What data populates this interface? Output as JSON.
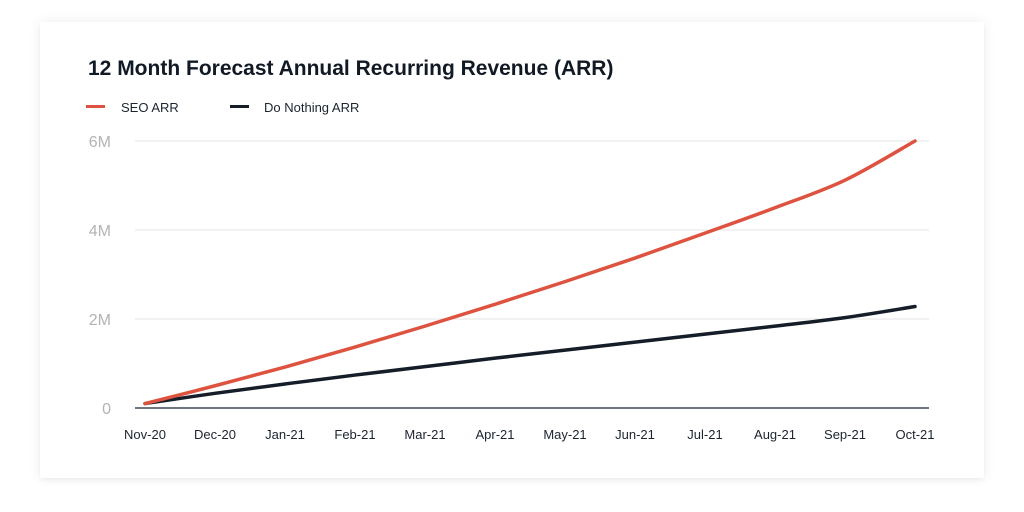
{
  "chart_data": {
    "type": "line",
    "title": "12 Month Forecast Annual Recurring Revenue (ARR)",
    "xlabel": "",
    "ylabel": "",
    "categories": [
      "Nov-20",
      "Dec-20",
      "Jan-21",
      "Feb-21",
      "Mar-21",
      "Apr-21",
      "May-21",
      "Jun-21",
      "Jul-21",
      "Aug-21",
      "Sep-21",
      "Oct-21"
    ],
    "yticks": [
      0,
      2000000,
      4000000,
      6000000
    ],
    "ytick_labels": [
      "0",
      "2M",
      "4M",
      "6M"
    ],
    "ylim": [
      0,
      6000000
    ],
    "grid": "horizontal",
    "legend_position": "top-left",
    "series": [
      {
        "name": "SEO ARR",
        "color": "#dd5340",
        "values": [
          100000,
          500000,
          920000,
          1370000,
          1840000,
          2330000,
          2840000,
          3370000,
          3930000,
          4500000,
          5120000,
          6000000
        ]
      },
      {
        "name": "Do Nothing ARR",
        "color": "#141d28",
        "values": [
          100000,
          330000,
          540000,
          740000,
          930000,
          1120000,
          1300000,
          1480000,
          1660000,
          1840000,
          2030000,
          2280000
        ]
      }
    ]
  }
}
